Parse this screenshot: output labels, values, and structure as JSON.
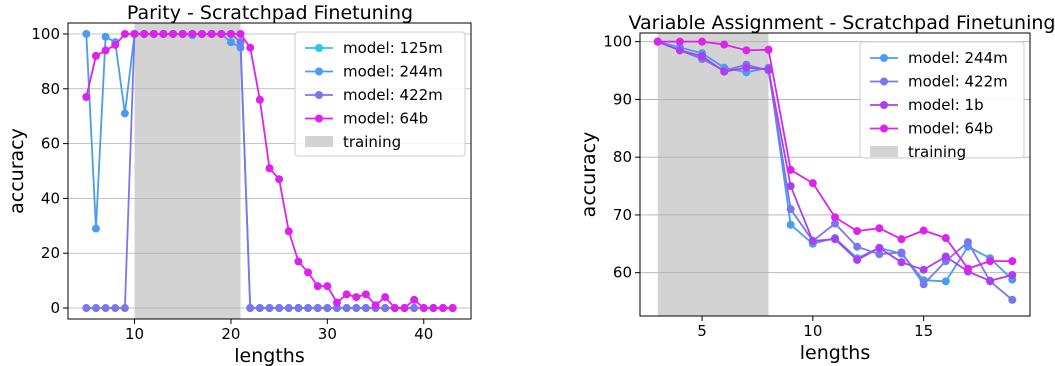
{
  "chart_data": [
    {
      "type": "line",
      "title": "Parity - Scratchpad Finetuning",
      "xlabel": "lengths",
      "ylabel": "accuracy",
      "xlim": [
        3.1,
        44.9
      ],
      "ylim": [
        -4,
        104
      ],
      "xticks": [
        10,
        20,
        30,
        40
      ],
      "yticks": [
        0,
        20,
        40,
        60,
        80,
        100
      ],
      "grid": "horizontal",
      "legend_position": "top-right",
      "training_region": {
        "x": [
          10,
          21
        ],
        "label": "training"
      },
      "series": [
        {
          "name": "model: 125m",
          "color": "#27c6ea",
          "x": [
            16
          ],
          "y": [
            99.5
          ]
        },
        {
          "name": "model: 244m",
          "color": "#4a9cf0",
          "x": [
            5,
            6,
            7,
            8,
            9,
            10,
            11,
            12,
            13,
            14,
            15,
            16,
            17,
            18,
            19,
            20,
            21,
            22,
            23,
            24,
            25,
            26,
            27,
            28,
            29,
            30,
            31,
            32,
            33,
            34,
            35,
            36,
            37,
            38,
            39,
            40,
            41,
            42,
            43
          ],
          "y": [
            100,
            29,
            99,
            97,
            71,
            100,
            100,
            100,
            100,
            100,
            100,
            100,
            100,
            100,
            100,
            97,
            95,
            0,
            0,
            0,
            0,
            0,
            0,
            0,
            0,
            0,
            0,
            0,
            0,
            0,
            0,
            0,
            0,
            0,
            0,
            0,
            0,
            0,
            0
          ]
        },
        {
          "name": "model: 422m",
          "color": "#7877ee",
          "x": [
            5,
            6,
            7,
            8,
            9,
            10,
            11,
            12,
            13,
            14,
            15,
            16,
            17,
            18,
            19,
            20,
            21,
            22,
            23,
            24,
            25,
            26,
            27,
            28,
            29,
            30,
            31,
            32,
            33,
            34,
            35,
            36,
            37,
            38,
            39,
            40,
            41,
            42,
            43
          ],
          "y": [
            0,
            0,
            0,
            0,
            0,
            100,
            100,
            100,
            100,
            100,
            100,
            100,
            100,
            100,
            100,
            100,
            97,
            0,
            0,
            0,
            0,
            0,
            0,
            0,
            0,
            0,
            0,
            0,
            0,
            0,
            0,
            0,
            0,
            0,
            0,
            0,
            0,
            0,
            0
          ]
        },
        {
          "name": "model: 64b",
          "color": "#dd22ec",
          "x": [
            5,
            6,
            7,
            8,
            9,
            10,
            11,
            12,
            13,
            14,
            15,
            16,
            17,
            18,
            19,
            20,
            21,
            22,
            23,
            24,
            25,
            26,
            27,
            28,
            29,
            30,
            31,
            32,
            33,
            34,
            35,
            36,
            37,
            38,
            39,
            40,
            41,
            42,
            43
          ],
          "y": [
            77,
            92,
            94,
            96,
            100,
            100,
            100,
            100,
            100,
            100,
            100,
            100,
            100,
            100,
            100,
            100,
            100,
            95,
            76,
            51,
            47,
            28,
            17,
            13,
            8,
            8,
            2,
            5,
            4,
            5,
            1,
            4,
            0,
            0,
            3,
            0,
            0,
            0,
            0
          ]
        }
      ]
    },
    {
      "type": "line",
      "title": "Variable Assignment - Scratchpad Finetuning",
      "xlabel": "lengths",
      "ylabel": "accuracy",
      "xlim": [
        2.2,
        19.8
      ],
      "ylim": [
        52.5,
        101.5
      ],
      "xticks": [
        5,
        10,
        15
      ],
      "yticks": [
        60,
        70,
        80,
        90,
        100
      ],
      "grid": "horizontal",
      "legend_position": "top-right",
      "training_region": {
        "x": [
          3,
          8
        ],
        "label": "training"
      },
      "series": [
        {
          "name": "model: 244m",
          "color": "#4a9cf0",
          "x": [
            3,
            4,
            5,
            6,
            7,
            8,
            9,
            10,
            11,
            12,
            13,
            14,
            15,
            16,
            17,
            18,
            19
          ],
          "y": [
            100,
            99,
            98,
            95.5,
            94.7,
            95.5,
            68.3,
            65,
            66,
            62.5,
            64.3,
            63.3,
            58.7,
            58.5,
            64.5,
            62.5,
            58.8
          ]
        },
        {
          "name": "model: 422m",
          "color": "#7877ee",
          "x": [
            3,
            4,
            5,
            6,
            7,
            8,
            9,
            10,
            11,
            12,
            13,
            14,
            15,
            16,
            17,
            18,
            19
          ],
          "y": [
            100,
            98.5,
            97,
            95,
            96,
            95,
            71,
            65.5,
            68.5,
            64.5,
            63.2,
            63.5,
            58,
            62,
            65.3,
            58.5,
            55.3
          ]
        },
        {
          "name": "model: 1b",
          "color": "#ac3ef2",
          "x": [
            3,
            4,
            5,
            6,
            7,
            8,
            9,
            10,
            11,
            12,
            13,
            14,
            15,
            16,
            17,
            18,
            19
          ],
          "y": [
            100,
            98.5,
            97.5,
            94.8,
            95.5,
            95.2,
            75,
            65.5,
            65.8,
            62.2,
            64.3,
            61.8,
            60.5,
            62.8,
            60.2,
            58.6,
            59.6
          ]
        },
        {
          "name": "model: 64b",
          "color": "#dd22ec",
          "x": [
            3,
            4,
            5,
            6,
            7,
            8,
            9,
            10,
            11,
            12,
            13,
            14,
            15,
            16,
            17,
            18,
            19
          ],
          "y": [
            100,
            100,
            100,
            99.5,
            98.5,
            98.6,
            77.8,
            75.5,
            69.6,
            67.2,
            67.7,
            65.8,
            67.3,
            66,
            60.7,
            62,
            62
          ]
        }
      ]
    }
  ]
}
